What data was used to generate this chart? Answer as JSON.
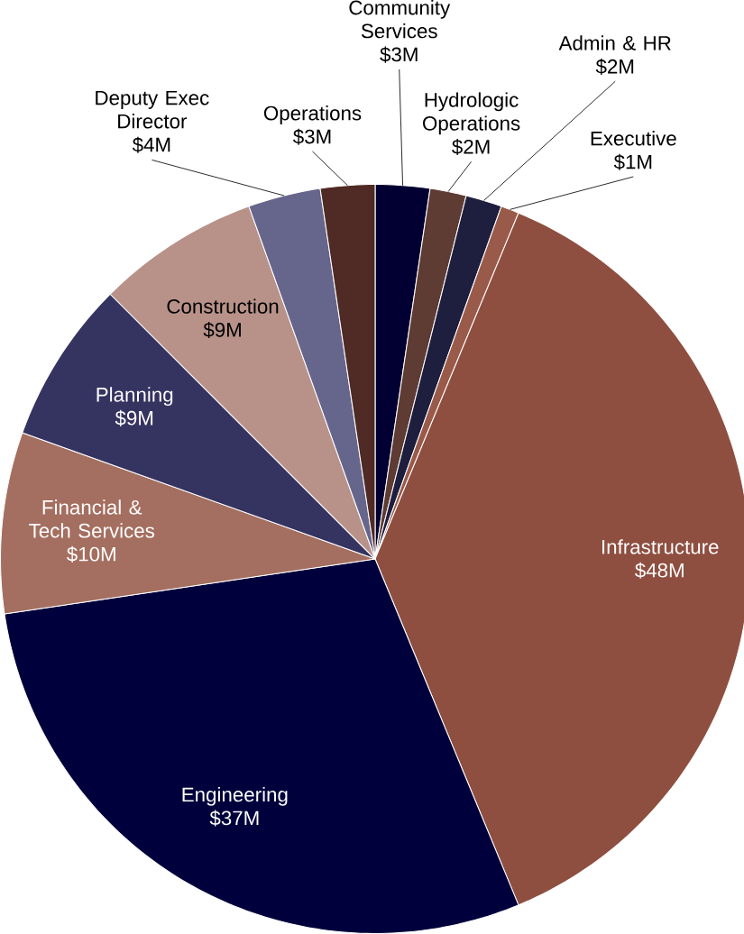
{
  "chart_data": {
    "type": "pie",
    "categories": [
      "Community Services",
      "Hydrologic Operations",
      "Admin & HR",
      "Executive",
      "Infrastructure",
      "Engineering",
      "Financial & Tech Services",
      "Planning",
      "Construction",
      "Deputy Exec Director",
      "Operations"
    ],
    "values": [
      3,
      2,
      2,
      1,
      48,
      37,
      10,
      9,
      9,
      4,
      3
    ],
    "colors": [
      "#020032",
      "#5e3b33",
      "#1e1e3e",
      "#9a5a4a",
      "#8e4f40",
      "#00003c",
      "#a46f60",
      "#353360",
      "#b89289",
      "#66658c",
      "#502a25"
    ],
    "value_labels": [
      "$3M",
      "$2M",
      "$2M",
      "$1M",
      "$48M",
      "$37M",
      "$10M",
      "$9M",
      "$9M",
      "$4M",
      "$3M"
    ]
  }
}
